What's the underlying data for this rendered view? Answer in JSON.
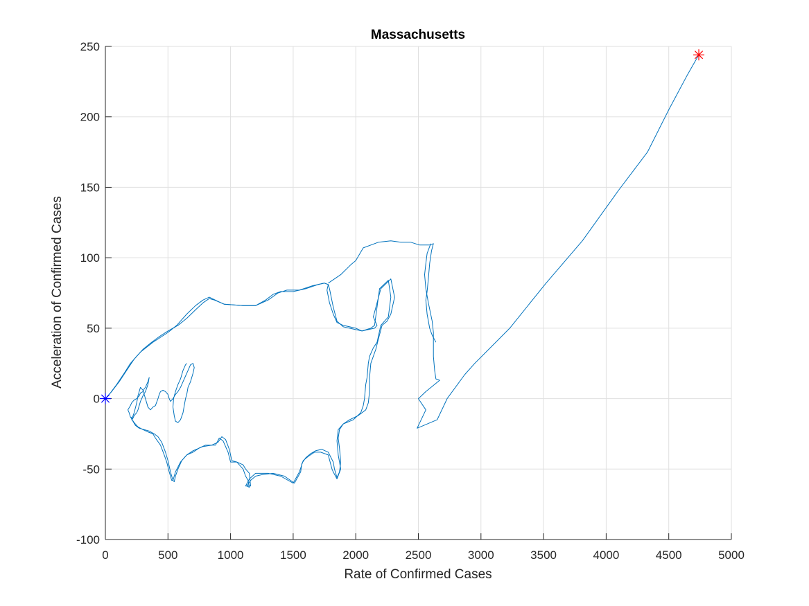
{
  "chart_data": {
    "type": "line",
    "title": "Massachusetts",
    "xlabel": "Rate of Confirmed Cases",
    "ylabel": "Acceleration of Confirmed Cases",
    "xlim": [
      0,
      5000
    ],
    "ylim": [
      -100,
      250
    ],
    "xticks": [
      0,
      500,
      1000,
      1500,
      2000,
      2500,
      3000,
      3500,
      4000,
      4500,
      5000
    ],
    "yticks": [
      -100,
      -50,
      0,
      50,
      100,
      150,
      200,
      250
    ],
    "xtick_labels": [
      "0",
      "500",
      "1000",
      "1500",
      "2000",
      "2500",
      "3000",
      "3500",
      "4000",
      "4500",
      "5000"
    ],
    "ytick_labels": [
      "-100",
      "-50",
      "0",
      "50",
      "100",
      "150",
      "200",
      "250"
    ],
    "grid": true,
    "colors": {
      "line": "#0072BD",
      "start_marker": "#0000FF",
      "end_marker": "#FF0000",
      "grid": "#DFDFDF",
      "axis": "#262626"
    },
    "series": [
      {
        "values_xy": [
          [
            0,
            0
          ],
          [
            40,
            4
          ],
          [
            90,
            10
          ],
          [
            150,
            18
          ],
          [
            200,
            25
          ],
          [
            280,
            33
          ],
          [
            380,
            40
          ],
          [
            500,
            47
          ],
          [
            570,
            52
          ],
          [
            650,
            60
          ],
          [
            720,
            66
          ],
          [
            780,
            70
          ],
          [
            830,
            72
          ],
          [
            900,
            69
          ],
          [
            950,
            67
          ],
          [
            1100,
            66
          ],
          [
            1200,
            66
          ],
          [
            1300,
            70
          ],
          [
            1380,
            75
          ],
          [
            1450,
            77
          ],
          [
            1550,
            77
          ],
          [
            1650,
            80
          ],
          [
            1750,
            82
          ],
          [
            1780,
            81
          ],
          [
            1790,
            78
          ],
          [
            1820,
            65
          ],
          [
            1850,
            55
          ],
          [
            1900,
            51
          ],
          [
            1950,
            50
          ],
          [
            2050,
            48
          ],
          [
            2120,
            50
          ],
          [
            2150,
            52
          ],
          [
            2190,
            78
          ],
          [
            2260,
            84
          ],
          [
            2280,
            72
          ],
          [
            2260,
            58
          ],
          [
            2230,
            55
          ],
          [
            2200,
            52
          ],
          [
            2170,
            40
          ],
          [
            2140,
            36
          ],
          [
            2110,
            30
          ],
          [
            2100,
            25
          ],
          [
            2090,
            15
          ],
          [
            2080,
            10
          ],
          [
            2070,
            0
          ],
          [
            2060,
            -5
          ],
          [
            2040,
            -10
          ],
          [
            1980,
            -15
          ],
          [
            1900,
            -18
          ],
          [
            1860,
            -22
          ],
          [
            1850,
            -30
          ],
          [
            1860,
            -40
          ],
          [
            1870,
            -45
          ],
          [
            1880,
            -50
          ],
          [
            1850,
            -57
          ],
          [
            1820,
            -52
          ],
          [
            1810,
            -50
          ],
          [
            1780,
            -40
          ],
          [
            1720,
            -38
          ],
          [
            1670,
            -38
          ],
          [
            1620,
            -41
          ],
          [
            1580,
            -44
          ],
          [
            1550,
            -52
          ],
          [
            1500,
            -60
          ],
          [
            1400,
            -55
          ],
          [
            1300,
            -53
          ],
          [
            1200,
            -53
          ],
          [
            1150,
            -57
          ],
          [
            1120,
            -62
          ],
          [
            1160,
            -62
          ],
          [
            1150,
            -53
          ],
          [
            1120,
            -50
          ],
          [
            1100,
            -47
          ],
          [
            1050,
            -45
          ],
          [
            1000,
            -45
          ],
          [
            980,
            -38
          ],
          [
            940,
            -30
          ],
          [
            910,
            -28
          ],
          [
            880,
            -33
          ],
          [
            800,
            -33
          ],
          [
            750,
            -35
          ],
          [
            700,
            -38
          ],
          [
            650,
            -40
          ],
          [
            600,
            -45
          ],
          [
            560,
            -52
          ],
          [
            540,
            -58
          ],
          [
            530,
            -58
          ],
          [
            510,
            -52
          ],
          [
            490,
            -45
          ],
          [
            470,
            -40
          ],
          [
            440,
            -33
          ],
          [
            400,
            -28
          ],
          [
            380,
            -25
          ],
          [
            350,
            -24
          ],
          [
            300,
            -22
          ],
          [
            260,
            -20
          ],
          [
            230,
            -17
          ],
          [
            200,
            -13
          ],
          [
            190,
            -10
          ],
          [
            180,
            -8
          ],
          [
            200,
            -5
          ],
          [
            210,
            -3
          ],
          [
            230,
            -1
          ],
          [
            250,
            0
          ],
          [
            270,
            2
          ],
          [
            280,
            4
          ],
          [
            300,
            5
          ],
          [
            310,
            7
          ],
          [
            320,
            8
          ],
          [
            330,
            10
          ],
          [
            340,
            12
          ],
          [
            350,
            15
          ],
          [
            340,
            10
          ],
          [
            320,
            5
          ],
          [
            300,
            2
          ],
          [
            290,
            0
          ],
          [
            280,
            -2
          ],
          [
            270,
            -5
          ],
          [
            260,
            -8
          ],
          [
            250,
            -10
          ],
          [
            230,
            -12
          ],
          [
            220,
            -14
          ],
          [
            210,
            -15
          ],
          [
            230,
            -10
          ],
          [
            250,
            -3
          ],
          [
            260,
            2
          ],
          [
            270,
            5
          ],
          [
            280,
            8
          ],
          [
            300,
            6
          ],
          [
            310,
            3
          ],
          [
            320,
            0
          ],
          [
            330,
            -3
          ],
          [
            340,
            -6
          ],
          [
            360,
            -8
          ],
          [
            380,
            -6
          ],
          [
            400,
            -5
          ],
          [
            420,
            0
          ],
          [
            430,
            3
          ],
          [
            440,
            5
          ],
          [
            460,
            6
          ],
          [
            480,
            5
          ],
          [
            500,
            3
          ],
          [
            510,
            0
          ],
          [
            520,
            -2
          ],
          [
            540,
            0
          ],
          [
            560,
            3
          ],
          [
            580,
            5
          ],
          [
            600,
            8
          ],
          [
            620,
            12
          ],
          [
            640,
            16
          ],
          [
            660,
            20
          ],
          [
            680,
            24
          ],
          [
            700,
            25
          ],
          [
            710,
            22
          ],
          [
            700,
            18
          ],
          [
            680,
            12
          ],
          [
            660,
            8
          ],
          [
            650,
            3
          ],
          [
            640,
            0
          ],
          [
            630,
            -5
          ],
          [
            620,
            -10
          ],
          [
            600,
            -15
          ],
          [
            580,
            -17
          ],
          [
            560,
            -16
          ],
          [
            550,
            -12
          ],
          [
            540,
            -6
          ],
          [
            545,
            0
          ],
          [
            560,
            5
          ],
          [
            580,
            10
          ],
          [
            600,
            14
          ],
          [
            620,
            20
          ],
          [
            640,
            24
          ],
          [
            650,
            25
          ]
        ]
      }
    ],
    "main_path": [
      [
        0,
        0
      ],
      [
        50,
        5
      ],
      [
        110,
        12
      ],
      [
        170,
        20
      ],
      [
        230,
        28
      ],
      [
        300,
        35
      ],
      [
        370,
        40
      ],
      [
        430,
        44
      ],
      [
        500,
        48
      ],
      [
        580,
        52
      ],
      [
        650,
        57
      ],
      [
        720,
        63
      ],
      [
        780,
        68
      ],
      [
        830,
        71
      ],
      [
        870,
        70
      ],
      [
        950,
        67
      ],
      [
        1100,
        66
      ],
      [
        1200,
        66
      ],
      [
        1280,
        70
      ],
      [
        1340,
        74
      ],
      [
        1400,
        76
      ],
      [
        1500,
        76
      ],
      [
        1600,
        78
      ],
      [
        1700,
        81
      ],
      [
        1750,
        82
      ],
      [
        1780,
        81
      ],
      [
        1770,
        77
      ],
      [
        1790,
        68
      ],
      [
        1820,
        60
      ],
      [
        1850,
        54
      ],
      [
        1900,
        52
      ],
      [
        2000,
        50
      ],
      [
        2050,
        48
      ],
      [
        2150,
        50
      ],
      [
        2170,
        52
      ],
      [
        2140,
        58
      ],
      [
        2200,
        78
      ],
      [
        2280,
        85
      ],
      [
        2310,
        72
      ],
      [
        2280,
        60
      ],
      [
        2250,
        55
      ],
      [
        2210,
        52
      ],
      [
        2180,
        42
      ],
      [
        2160,
        35
      ],
      [
        2120,
        25
      ],
      [
        2110,
        15
      ],
      [
        2110,
        5
      ],
      [
        2100,
        -3
      ],
      [
        2080,
        -8
      ],
      [
        2020,
        -12
      ],
      [
        1950,
        -15
      ],
      [
        1900,
        -18
      ],
      [
        1870,
        -22
      ],
      [
        1860,
        -28
      ],
      [
        1870,
        -35
      ],
      [
        1880,
        -45
      ],
      [
        1870,
        -52
      ],
      [
        1850,
        -56
      ],
      [
        1830,
        -50
      ],
      [
        1820,
        -45
      ],
      [
        1780,
        -38
      ],
      [
        1730,
        -36
      ],
      [
        1680,
        -37
      ],
      [
        1640,
        -39
      ],
      [
        1600,
        -42
      ],
      [
        1570,
        -46
      ],
      [
        1560,
        -52
      ],
      [
        1510,
        -60
      ],
      [
        1430,
        -55
      ],
      [
        1340,
        -53
      ],
      [
        1250,
        -54
      ],
      [
        1200,
        -55
      ],
      [
        1160,
        -58
      ],
      [
        1130,
        -62
      ],
      [
        1150,
        -63
      ],
      [
        1140,
        -58
      ],
      [
        1120,
        -55
      ],
      [
        1100,
        -50
      ],
      [
        1050,
        -45
      ],
      [
        1010,
        -44
      ],
      [
        990,
        -36
      ],
      [
        960,
        -29
      ],
      [
        930,
        -27
      ],
      [
        900,
        -31
      ],
      [
        850,
        -33
      ],
      [
        780,
        -34
      ],
      [
        700,
        -37
      ],
      [
        650,
        -40
      ],
      [
        610,
        -44
      ],
      [
        580,
        -50
      ],
      [
        560,
        -55
      ],
      [
        550,
        -59
      ],
      [
        540,
        -58
      ],
      [
        520,
        -52
      ],
      [
        500,
        -44
      ],
      [
        480,
        -38
      ],
      [
        450,
        -31
      ],
      [
        420,
        -27
      ],
      [
        390,
        -25
      ],
      [
        350,
        -23
      ],
      [
        310,
        -22
      ],
      [
        270,
        -21
      ],
      [
        240,
        -19
      ],
      [
        220,
        -16
      ],
      [
        205,
        -13
      ]
    ],
    "tail_path": [
      [
        2600,
        110
      ],
      [
        2590,
        108
      ],
      [
        2570,
        103
      ],
      [
        2560,
        96
      ],
      [
        2550,
        88
      ],
      [
        2560,
        78
      ],
      [
        2580,
        68
      ],
      [
        2610,
        55
      ],
      [
        2620,
        47
      ],
      [
        2620,
        30
      ],
      [
        2630,
        20
      ],
      [
        2640,
        14
      ],
      [
        2670,
        13
      ],
      [
        2560,
        5
      ],
      [
        2500,
        0
      ],
      [
        2560,
        -8
      ],
      [
        2490,
        -21
      ],
      [
        2650,
        -15
      ],
      [
        2730,
        0
      ],
      [
        2870,
        17
      ],
      [
        2950,
        25
      ],
      [
        3230,
        50
      ],
      [
        3520,
        82
      ],
      [
        3810,
        112
      ],
      [
        4100,
        148
      ],
      [
        4330,
        175
      ],
      [
        4500,
        205
      ],
      [
        4650,
        230
      ],
      [
        4740,
        244
      ]
    ],
    "loop_path": [
      [
        1780,
        82
      ],
      [
        1880,
        88
      ],
      [
        1960,
        95
      ],
      [
        2000,
        98
      ],
      [
        2060,
        107
      ],
      [
        2180,
        111
      ],
      [
        2280,
        112
      ],
      [
        2360,
        111
      ],
      [
        2440,
        111
      ],
      [
        2510,
        109
      ],
      [
        2560,
        109
      ],
      [
        2590,
        109
      ],
      [
        2620,
        110
      ],
      [
        2605,
        105
      ],
      [
        2590,
        96
      ],
      [
        2580,
        85
      ],
      [
        2570,
        76
      ],
      [
        2560,
        70
      ],
      [
        2570,
        60
      ],
      [
        2590,
        50
      ],
      [
        2610,
        45
      ],
      [
        2640,
        40
      ]
    ],
    "markers": [
      {
        "label": "start",
        "x": 0,
        "y": 0
      },
      {
        "label": "end",
        "x": 4740,
        "y": 244
      }
    ]
  }
}
